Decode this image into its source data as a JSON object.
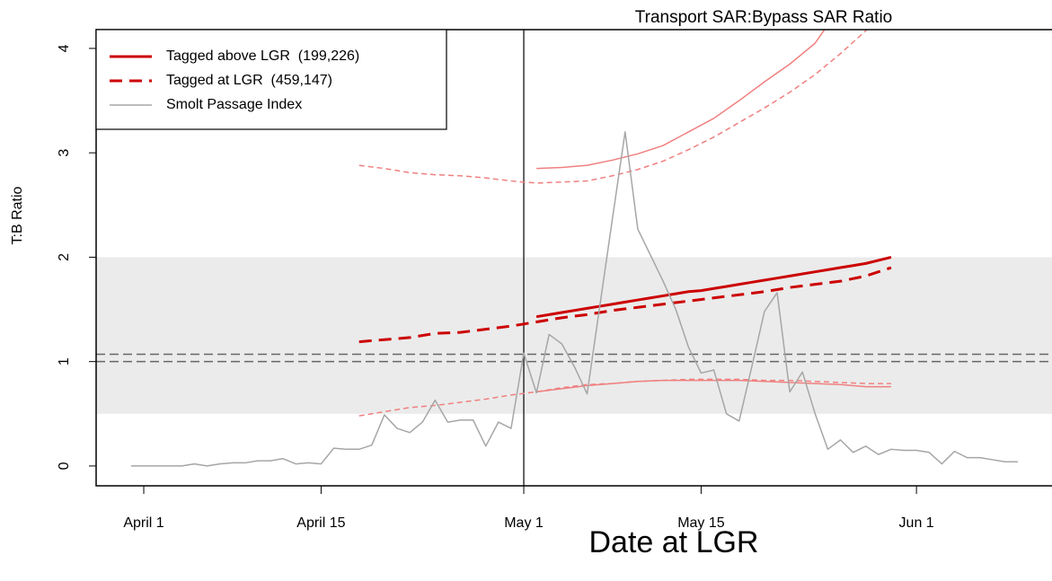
{
  "chart_data": {
    "type": "line",
    "title": "Transport SAR:Bypass SAR Ratio",
    "x_label": "Date at LGR",
    "y_label": "T:B Ratio",
    "xlim": [
      -3.76,
      71.7
    ],
    "ylim": [
      -0.19,
      4.18
    ],
    "xticks": [
      {
        "value": 0,
        "label": "April 1"
      },
      {
        "value": 14,
        "label": "April 15"
      },
      {
        "value": 30,
        "label": "May 1"
      },
      {
        "value": 44,
        "label": "May 15"
      },
      {
        "value": 61,
        "label": "Jun 1"
      }
    ],
    "yticks": [
      0,
      1,
      2,
      3,
      4
    ],
    "shaded_band": [
      0.5,
      2
    ],
    "hlines": [
      1,
      1.07
    ],
    "vline": 30,
    "legend": "top-left",
    "series": [
      {
        "name": "Tagged above LGR  (199,226)",
        "color": "#cc0000",
        "style": "solid",
        "width": 3,
        "x": [
          31,
          32,
          33,
          34,
          35,
          36,
          37,
          38,
          39,
          40,
          41,
          42,
          43,
          44,
          45,
          46,
          47,
          48,
          49,
          50,
          51,
          52,
          53,
          54,
          55,
          56,
          57,
          58,
          59
        ],
        "values": [
          1.43,
          1.45,
          1.47,
          1.49,
          1.51,
          1.53,
          1.55,
          1.57,
          1.59,
          1.61,
          1.63,
          1.65,
          1.67,
          1.68,
          1.7,
          1.72,
          1.74,
          1.76,
          1.78,
          1.8,
          1.82,
          1.84,
          1.86,
          1.88,
          1.9,
          1.92,
          1.94,
          1.97,
          2.0
        ]
      },
      {
        "name": "Tagged at LGR  (459,147)",
        "color": "#cc0000",
        "style": "dashed",
        "width": 3,
        "x": [
          17,
          19,
          21,
          23,
          25,
          27,
          29,
          31,
          33,
          35,
          37,
          39,
          41,
          43,
          45,
          47,
          49,
          51,
          53,
          55,
          57,
          59
        ],
        "values": [
          1.19,
          1.21,
          1.23,
          1.27,
          1.28,
          1.31,
          1.34,
          1.38,
          1.42,
          1.45,
          1.49,
          1.52,
          1.55,
          1.58,
          1.61,
          1.64,
          1.67,
          1.71,
          1.74,
          1.77,
          1.82,
          1.9
        ]
      },
      {
        "name": "Smolt Passage Index",
        "color": "#a6a6a6",
        "style": "solid",
        "width": 1.5,
        "x": [
          -1,
          0,
          1,
          2,
          3,
          4,
          5,
          6,
          7,
          8,
          9,
          10,
          11,
          12,
          13,
          14,
          15,
          16,
          17,
          18,
          19,
          20,
          21,
          22,
          23,
          24,
          25,
          26,
          27,
          28,
          29,
          30,
          31,
          32,
          33,
          34,
          35,
          36,
          37,
          38,
          39,
          40,
          41,
          42,
          43,
          44,
          45,
          46,
          47,
          48,
          49,
          50,
          51,
          52,
          53,
          54,
          55,
          56,
          57,
          58,
          59,
          60,
          61,
          62,
          63,
          64,
          65,
          66,
          67,
          68,
          69
        ],
        "values": [
          0,
          0,
          0,
          0,
          0,
          0.02,
          0,
          0.02,
          0.03,
          0.03,
          0.05,
          0.05,
          0.07,
          0.02,
          0.03,
          0.02,
          0.17,
          0.16,
          0.16,
          0.2,
          0.49,
          0.36,
          0.32,
          0.42,
          0.63,
          0.42,
          0.44,
          0.44,
          0.19,
          0.42,
          0.36,
          1.08,
          0.7,
          1.26,
          1.17,
          0.95,
          0.69,
          1.53,
          2.37,
          3.2,
          2.27,
          2.02,
          1.77,
          1.5,
          1.14,
          0.89,
          0.92,
          0.5,
          0.43,
          0.95,
          1.48,
          1.66,
          0.71,
          0.9,
          0.5,
          0.16,
          0.25,
          0.13,
          0.19,
          0.11,
          0.16,
          0.15,
          0.15,
          0.13,
          0.02,
          0.14,
          0.08,
          0.08,
          0.06,
          0.04,
          0.04
        ]
      },
      {
        "color": "#f08080",
        "style": "solid",
        "width": 1.5,
        "x": [
          31,
          33,
          35,
          37,
          39,
          41,
          43,
          45,
          47,
          49,
          51,
          53,
          55
        ],
        "values": [
          2.85,
          2.86,
          2.88,
          2.93,
          2.99,
          3.07,
          3.2,
          3.33,
          3.5,
          3.68,
          3.85,
          4.05,
          4.4
        ]
      },
      {
        "color": "#f08080",
        "style": "dashed",
        "width": 1.5,
        "x": [
          17,
          19,
          21,
          23,
          25,
          27,
          29,
          31,
          33,
          35,
          37,
          39,
          41,
          43,
          45,
          47,
          49,
          51,
          53,
          55,
          57,
          59
        ],
        "values": [
          2.88,
          2.85,
          2.81,
          2.79,
          2.78,
          2.76,
          2.73,
          2.71,
          2.72,
          2.73,
          2.78,
          2.84,
          2.92,
          3.03,
          3.15,
          3.29,
          3.43,
          3.58,
          3.75,
          3.95,
          4.17,
          4.4
        ]
      },
      {
        "color": "#f08080",
        "style": "solid",
        "width": 1.5,
        "x": [
          31,
          33,
          35,
          37,
          39,
          41,
          43,
          45,
          47,
          49,
          51,
          53,
          55,
          57,
          59
        ],
        "values": [
          0.71,
          0.74,
          0.77,
          0.79,
          0.81,
          0.82,
          0.82,
          0.82,
          0.82,
          0.81,
          0.8,
          0.79,
          0.78,
          0.76,
          0.76
        ]
      },
      {
        "color": "#f08080",
        "style": "dashed",
        "width": 1.5,
        "x": [
          17,
          19,
          21,
          23,
          25,
          27,
          29,
          31,
          33,
          35,
          37,
          39,
          41,
          43,
          45,
          47,
          49,
          51,
          53,
          55,
          57,
          59
        ],
        "values": [
          0.48,
          0.52,
          0.56,
          0.58,
          0.61,
          0.64,
          0.68,
          0.71,
          0.75,
          0.78,
          0.79,
          0.81,
          0.82,
          0.83,
          0.83,
          0.83,
          0.82,
          0.82,
          0.81,
          0.8,
          0.79,
          0.79
        ]
      }
    ]
  }
}
